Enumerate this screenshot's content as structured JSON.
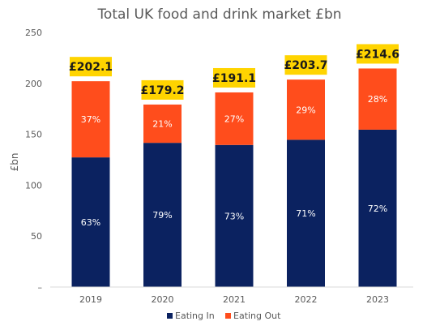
{
  "chart_data": {
    "type": "bar",
    "stacked": true,
    "title": "Total UK food and drink market £bn",
    "ylabel": "£bn",
    "ylim": [
      0,
      250
    ],
    "yticks": [
      "–",
      "50",
      "100",
      "150",
      "200",
      "250"
    ],
    "grid": false,
    "legend_position": "bottom",
    "categories": [
      "2019",
      "2020",
      "2021",
      "2022",
      "2023"
    ],
    "totals": [
      202.1,
      179.2,
      191.1,
      203.7,
      214.6
    ],
    "total_labels": [
      "£202.1",
      "£179.2",
      "£191.1",
      "£203.7",
      "£214.6"
    ],
    "series": [
      {
        "name": "Eating In",
        "color": "#0b2260",
        "values": [
          127.3,
          141.6,
          139.5,
          144.6,
          154.5
        ],
        "labels": [
          "63%",
          "79%",
          "73%",
          "71%",
          "72%"
        ]
      },
      {
        "name": "Eating Out",
        "color": "#ff4d1c",
        "values": [
          74.8,
          37.6,
          51.6,
          59.1,
          60.1
        ],
        "labels": [
          "37%",
          "21%",
          "27%",
          "29%",
          "28%"
        ]
      }
    ],
    "total_label_bg": "#ffd400"
  }
}
